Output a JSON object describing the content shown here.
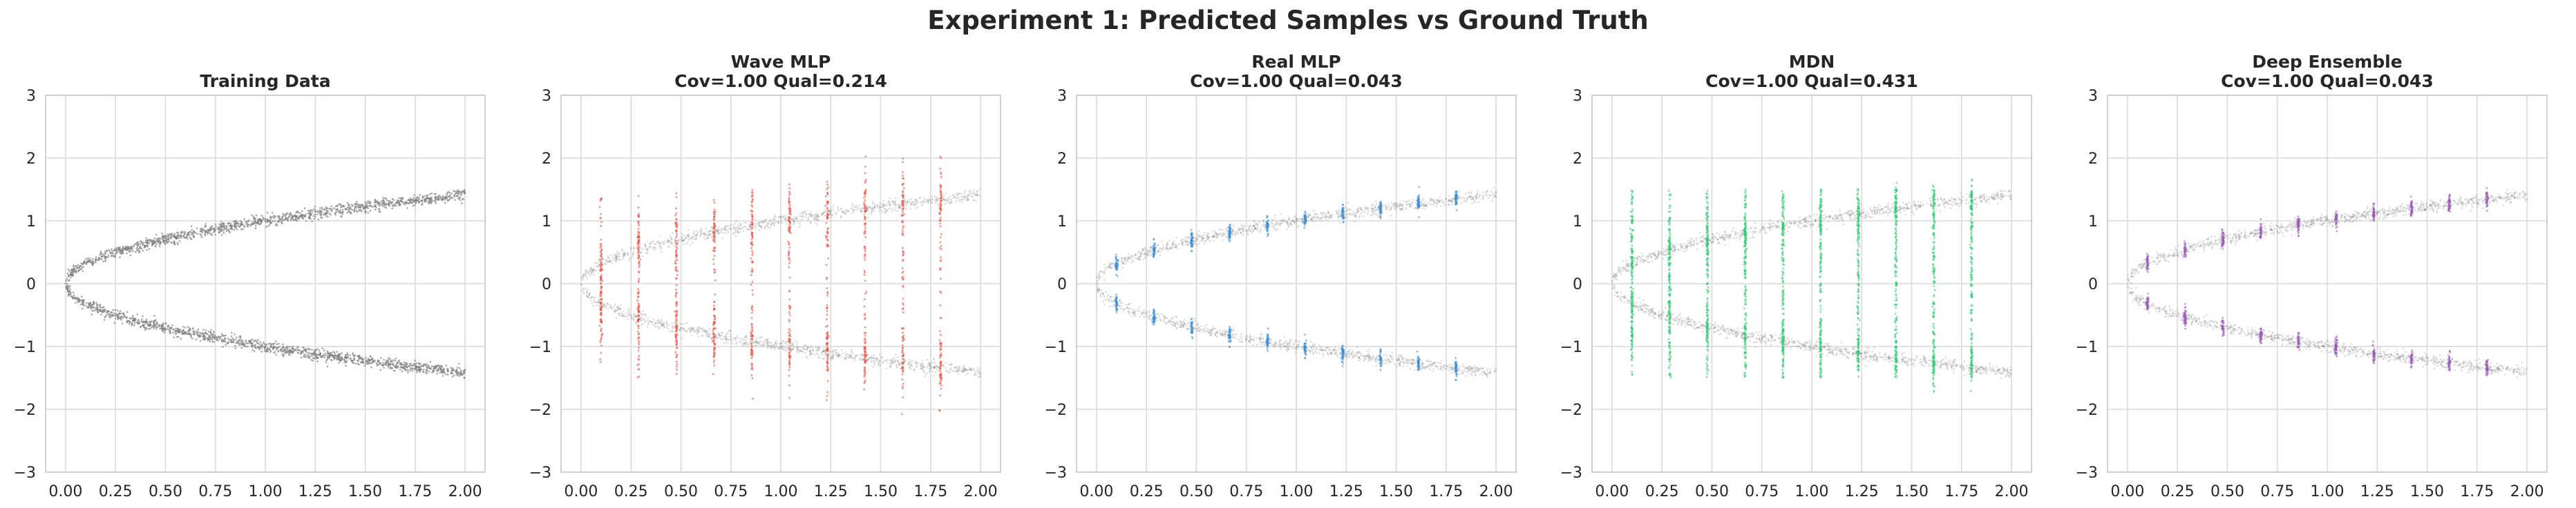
{
  "figure": {
    "title": "Experiment 1: Predicted Samples vs Ground Truth"
  },
  "colors": {
    "ground_truth": "#808080",
    "wave_mlp": "#e74c3c",
    "real_mlp": "#3a8fd9",
    "mdn": "#2ecc71",
    "deep_ensemble": "#9b59b6",
    "grid": "#d9d9d9",
    "axes_edge": "#cccccc"
  },
  "chart_data": [
    {
      "type": "scatter",
      "title_lines": [
        "Training Data"
      ],
      "series": [
        {
          "role": "ground-truth",
          "relation": "y = ±sqrt(x) + noise",
          "x_range": [
            0,
            2
          ],
          "color": "#808080"
        }
      ],
      "xlim": [
        -0.1,
        2.1
      ],
      "ylim": [
        -3,
        3
      ],
      "x_ticks": [
        "0.00",
        "0.25",
        "0.50",
        "0.75",
        "1.00",
        "1.25",
        "1.50",
        "1.75",
        "2.00"
      ],
      "y_ticks": [
        "-3",
        "-2",
        "-1",
        "0",
        "1",
        "2",
        "3"
      ],
      "grid": true
    },
    {
      "type": "scatter",
      "title_lines": [
        "Wave MLP",
        "Cov=1.00 Qual=0.214"
      ],
      "series": [
        {
          "role": "ground-truth",
          "relation": "y = ±sqrt(x) + noise",
          "x_range": [
            0,
            2
          ],
          "color": "#808080"
        },
        {
          "role": "samples",
          "color": "#e74c3c",
          "x": [
            0.1,
            0.288,
            0.477,
            0.667,
            0.856,
            1.044,
            1.233,
            1.422,
            1.611,
            1.8
          ],
          "sample_spread": "wide vertical spread in [-1.5, 1.5] at each x, concentrated near ±sqrt(x)"
        }
      ],
      "xlim": [
        -0.1,
        2.1
      ],
      "ylim": [
        -3,
        3
      ],
      "x_ticks": [
        "0.00",
        "0.25",
        "0.50",
        "0.75",
        "1.00",
        "1.25",
        "1.50",
        "1.75",
        "2.00"
      ],
      "y_ticks": [
        "-3",
        "-2",
        "-1",
        "0",
        "1",
        "2",
        "3"
      ],
      "grid": true
    },
    {
      "type": "scatter",
      "title_lines": [
        "Real MLP",
        "Cov=1.00 Qual=0.043"
      ],
      "series": [
        {
          "role": "ground-truth",
          "relation": "y = ±sqrt(x) + noise",
          "x_range": [
            0,
            2
          ],
          "color": "#808080"
        },
        {
          "role": "samples",
          "color": "#3a8fd9",
          "x": [
            0.1,
            0.288,
            0.477,
            0.667,
            0.856,
            1.044,
            1.233,
            1.422,
            1.611,
            1.8
          ],
          "sample_spread": "tight clusters at ±sqrt(x)"
        }
      ],
      "xlim": [
        -0.1,
        2.1
      ],
      "ylim": [
        -3,
        3
      ],
      "x_ticks": [
        "0.00",
        "0.25",
        "0.50",
        "0.75",
        "1.00",
        "1.25",
        "1.50",
        "1.75",
        "2.00"
      ],
      "y_ticks": [
        "-3",
        "-2",
        "-1",
        "0",
        "1",
        "2",
        "3"
      ],
      "grid": true
    },
    {
      "type": "scatter",
      "title_lines": [
        "MDN",
        "Cov=1.00 Qual=0.431"
      ],
      "series": [
        {
          "role": "ground-truth",
          "relation": "y = ±sqrt(x) + noise",
          "x_range": [
            0,
            2
          ],
          "color": "#808080"
        },
        {
          "role": "samples",
          "color": "#2ecc71",
          "x": [
            0.1,
            0.288,
            0.477,
            0.667,
            0.856,
            1.044,
            1.233,
            1.422,
            1.611,
            1.8
          ],
          "sample_spread": "vertical bands spanning roughly [-1.5, 1.5]"
        }
      ],
      "xlim": [
        -0.1,
        2.1
      ],
      "ylim": [
        -3,
        3
      ],
      "x_ticks": [
        "0.00",
        "0.25",
        "0.50",
        "0.75",
        "1.00",
        "1.25",
        "1.50",
        "1.75",
        "2.00"
      ],
      "y_ticks": [
        "-3",
        "-2",
        "-1",
        "0",
        "1",
        "2",
        "3"
      ],
      "grid": true
    },
    {
      "type": "scatter",
      "title_lines": [
        "Deep Ensemble",
        "Cov=1.00 Qual=0.043"
      ],
      "series": [
        {
          "role": "ground-truth",
          "relation": "y = ±sqrt(x) + noise",
          "x_range": [
            0,
            2
          ],
          "color": "#808080"
        },
        {
          "role": "samples",
          "color": "#9b59b6",
          "x": [
            0.1,
            0.288,
            0.477,
            0.667,
            0.856,
            1.044,
            1.233,
            1.422,
            1.611,
            1.8
          ],
          "sample_spread": "tight clusters at ±sqrt(x)"
        }
      ],
      "xlim": [
        -0.1,
        2.1
      ],
      "ylim": [
        -3,
        3
      ],
      "x_ticks": [
        "0.00",
        "0.25",
        "0.50",
        "0.75",
        "1.00",
        "1.25",
        "1.50",
        "1.75",
        "2.00"
      ],
      "y_ticks": [
        "-3",
        "-2",
        "-1",
        "0",
        "1",
        "2",
        "3"
      ],
      "grid": true
    }
  ]
}
